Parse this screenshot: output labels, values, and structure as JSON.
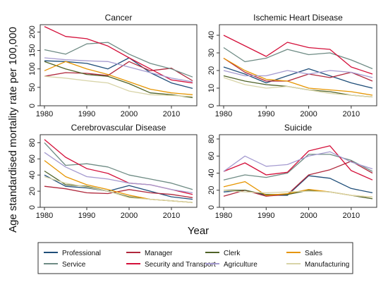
{
  "figure": {
    "ylabel": "Age standardised mortality rate per 100,000",
    "xlabel": "Year"
  },
  "legend": {
    "placement": "bottom",
    "items": [
      {
        "label": "Professional",
        "color": "#1f4e79"
      },
      {
        "label": "Manager",
        "color": "#b0283c"
      },
      {
        "label": "Clerk",
        "color": "#4f6228"
      },
      {
        "label": "Sales",
        "color": "#e69500"
      },
      {
        "label": "Service",
        "color": "#6e8b84"
      },
      {
        "label": "Security and Transport",
        "color": "#d4103a"
      },
      {
        "label": "Agriculture",
        "color": "#a59bd0"
      },
      {
        "label": "Manufacturing",
        "color": "#d8d4a8"
      }
    ]
  },
  "chart_data": [
    {
      "type": "line",
      "title": "Cancer",
      "x": [
        1980,
        1985,
        1990,
        1995,
        2000,
        2005,
        2010,
        2015
      ],
      "xticks": [
        1980,
        1990,
        2000,
        2010
      ],
      "xlim": [
        1979,
        2016
      ],
      "ylim": [
        0,
        220
      ],
      "yticks": [
        0,
        50,
        100,
        150,
        200
      ],
      "grid": false,
      "series": [
        {
          "name": "Professional",
          "color": "#1f4e79",
          "values": [
            122,
            120,
            115,
            100,
            130,
            90,
            62,
            47
          ]
        },
        {
          "name": "Manager",
          "color": "#b0283c",
          "values": [
            80,
            90,
            88,
            82,
            120,
            95,
            102,
            68
          ]
        },
        {
          "name": "Clerk",
          "color": "#4f6228",
          "values": [
            120,
            100,
            85,
            80,
            60,
            35,
            30,
            22
          ]
        },
        {
          "name": "Sales",
          "color": "#e69500",
          "values": [
            95,
            120,
            100,
            85,
            65,
            45,
            35,
            30
          ]
        },
        {
          "name": "Service",
          "color": "#6e8b84",
          "values": [
            152,
            140,
            168,
            172,
            140,
            115,
            100,
            78
          ]
        },
        {
          "name": "Security and Transport",
          "color": "#d4103a",
          "values": [
            215,
            188,
            182,
            162,
            130,
            100,
            70,
            62
          ]
        },
        {
          "name": "Agriculture",
          "color": "#a59bd0",
          "values": [
            130,
            125,
            122,
            120,
            105,
            90,
            75,
            65
          ]
        },
        {
          "name": "Manufacturing",
          "color": "#d8d4a8",
          "values": [
            80,
            75,
            68,
            62,
            40,
            30,
            28,
            25
          ]
        }
      ]
    },
    {
      "type": "line",
      "title": "Ischemic Heart Disease",
      "x": [
        1980,
        1985,
        1990,
        1995,
        2000,
        2005,
        2010,
        2015
      ],
      "xticks": [
        1980,
        1990,
        2000,
        2010
      ],
      "xlim": [
        1979,
        2016
      ],
      "ylim": [
        0,
        46
      ],
      "yticks": [
        0,
        10,
        20,
        30,
        40
      ],
      "grid": false,
      "series": [
        {
          "name": "Professional",
          "color": "#1f4e79",
          "values": [
            22,
            18,
            13,
            17,
            21,
            17,
            13,
            10
          ]
        },
        {
          "name": "Manager",
          "color": "#b0283c",
          "values": [
            27,
            19,
            14,
            14,
            18,
            16,
            19,
            14
          ]
        },
        {
          "name": "Clerk",
          "color": "#4f6228",
          "values": [
            17,
            14,
            12,
            11,
            9,
            8,
            6,
            5
          ]
        },
        {
          "name": "Sales",
          "color": "#e69500",
          "values": [
            27,
            20,
            15,
            14,
            10,
            9,
            8,
            6
          ]
        },
        {
          "name": "Service",
          "color": "#6e8b84",
          "values": [
            33,
            25,
            27,
            32,
            29,
            30,
            26,
            21
          ]
        },
        {
          "name": "Security and Transport",
          "color": "#d4103a",
          "values": [
            40,
            34,
            28,
            36,
            33,
            32,
            22,
            18
          ]
        },
        {
          "name": "Agriculture",
          "color": "#a59bd0",
          "values": [
            20,
            17,
            17,
            20,
            18,
            20,
            19,
            16
          ]
        },
        {
          "name": "Manufacturing",
          "color": "#d8d4a8",
          "values": [
            16,
            12,
            10,
            11,
            9,
            7,
            6,
            5
          ]
        }
      ]
    },
    {
      "type": "line",
      "title": "Cerebrovascular Disease",
      "x": [
        1980,
        1985,
        1990,
        1995,
        2000,
        2005,
        2010,
        2015
      ],
      "xticks": [
        1980,
        1990,
        2000,
        2010
      ],
      "xlim": [
        1979,
        2016
      ],
      "ylim": [
        0,
        90
      ],
      "yticks": [
        0,
        20,
        40,
        60,
        80
      ],
      "grid": false,
      "series": [
        {
          "name": "Professional",
          "color": "#1f4e79",
          "values": [
            40,
            26,
            24,
            20,
            27,
            20,
            13,
            10
          ]
        },
        {
          "name": "Manager",
          "color": "#b0283c",
          "values": [
            26,
            23,
            18,
            17,
            22,
            18,
            16,
            12
          ]
        },
        {
          "name": "Clerk",
          "color": "#4f6228",
          "values": [
            45,
            28,
            26,
            20,
            13,
            10,
            8,
            6
          ]
        },
        {
          "name": "Sales",
          "color": "#e69500",
          "values": [
            58,
            38,
            28,
            22,
            15,
            10,
            8,
            6
          ]
        },
        {
          "name": "Service",
          "color": "#6e8b84",
          "values": [
            80,
            52,
            54,
            50,
            40,
            35,
            30,
            22
          ]
        },
        {
          "name": "Security and Transport",
          "color": "#d4103a",
          "values": [
            84,
            62,
            48,
            42,
            30,
            28,
            22,
            16
          ]
        },
        {
          "name": "Agriculture",
          "color": "#a59bd0",
          "values": [
            68,
            50,
            38,
            35,
            30,
            28,
            22,
            18
          ]
        },
        {
          "name": "Manufacturing",
          "color": "#d8d4a8",
          "values": [
            38,
            30,
            25,
            20,
            12,
            10,
            8,
            6
          ]
        }
      ]
    },
    {
      "type": "line",
      "title": "Suicide",
      "x": [
        1980,
        1985,
        1990,
        1995,
        2000,
        2005,
        2010,
        2015
      ],
      "xticks": [
        1980,
        1990,
        2000,
        2010
      ],
      "xlim": [
        1979,
        2016
      ],
      "ylim": [
        0,
        85
      ],
      "yticks": [
        0,
        20,
        40,
        60,
        80
      ],
      "grid": false,
      "series": [
        {
          "name": "Professional",
          "color": "#1f4e79",
          "values": [
            18,
            20,
            14,
            14,
            37,
            34,
            22,
            17
          ]
        },
        {
          "name": "Manager",
          "color": "#b0283c",
          "values": [
            13,
            20,
            13,
            15,
            38,
            44,
            54,
            40
          ]
        },
        {
          "name": "Clerk",
          "color": "#4f6228",
          "values": [
            20,
            20,
            15,
            15,
            20,
            18,
            14,
            10
          ]
        },
        {
          "name": "Sales",
          "color": "#e69500",
          "values": [
            24,
            30,
            14,
            16,
            21,
            18,
            14,
            12
          ]
        },
        {
          "name": "Service",
          "color": "#6e8b84",
          "values": [
            32,
            38,
            35,
            40,
            62,
            62,
            55,
            42
          ]
        },
        {
          "name": "Security and Transport",
          "color": "#d4103a",
          "values": [
            42,
            52,
            38,
            41,
            66,
            72,
            43,
            32
          ]
        },
        {
          "name": "Agriculture",
          "color": "#a59bd0",
          "values": [
            42,
            60,
            48,
            50,
            60,
            65,
            53,
            45
          ]
        },
        {
          "name": "Manufacturing",
          "color": "#d8d4a8",
          "values": [
            20,
            18,
            17,
            18,
            19,
            18,
            14,
            12
          ]
        }
      ]
    }
  ]
}
